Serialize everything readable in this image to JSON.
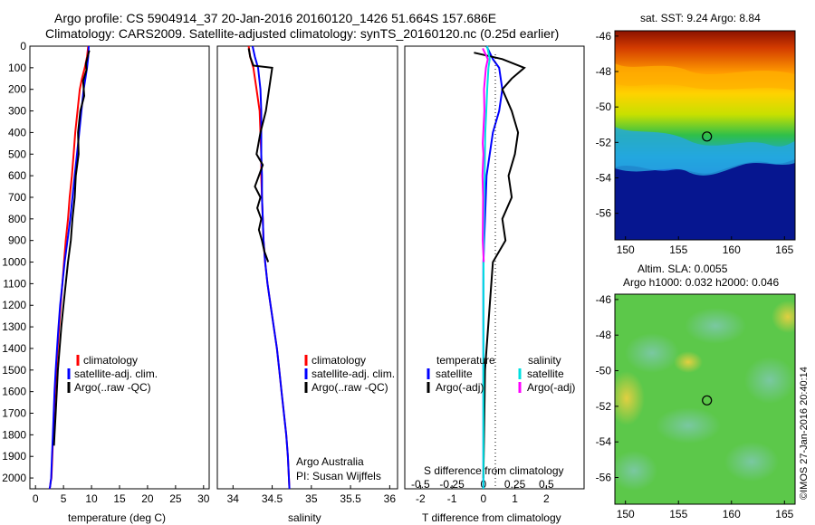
{
  "figure": {
    "title_line1": "Argo profile: CS 5904914_37 20-Jan-2016 20160120_1426 51.664S 157.686E",
    "title_line2": "Climatology: CARS2009. Satellite-adjusted climatology: synTS_20160120.nc (0.25d earlier)",
    "credit": "Argo Australia",
    "pi": "PI: Susan Wijffels",
    "side_stamp": "©IMOS 27-Jan-2016 20:40:14"
  },
  "colors": {
    "climatology": "#ff0000",
    "satellite": "#0000ff",
    "argo": "#000000",
    "salinity_satellite": "#00e0e0",
    "salinity_argo": "#ff00ff"
  },
  "chart_data": [
    {
      "type": "line",
      "id": "temperature",
      "xlabel": "temperature (deg C)",
      "ylabel": "",
      "xlim": [
        -1,
        31
      ],
      "ylim": [
        2050,
        0
      ],
      "xticks": [
        0,
        5,
        10,
        15,
        20,
        25,
        30
      ],
      "yticks": [
        0,
        100,
        200,
        300,
        400,
        500,
        600,
        700,
        800,
        900,
        1000,
        1100,
        1200,
        1300,
        1400,
        1500,
        1600,
        1700,
        1800,
        1900,
        2000
      ],
      "legend": [
        {
          "label": "climatology",
          "color": "#ff0000"
        },
        {
          "label": "satellite-adj. clim.",
          "color": "#0000ff"
        },
        {
          "label": "Argo(..raw -QC)",
          "color": "#000000"
        }
      ],
      "series": [
        {
          "name": "climatology",
          "color": "#ff0000",
          "x": [
            9.4,
            9.2,
            8.8,
            8.3,
            7.9,
            7.5,
            7.1,
            6.8,
            6.5,
            6.1,
            5.8,
            5.4,
            5.1,
            4.8,
            4.5,
            4.2,
            3.95,
            3.7,
            3.5,
            3.3,
            3.15,
            3.0,
            2.85,
            2.7,
            2.6,
            2.5
          ],
          "y": [
            0,
            50,
            100,
            150,
            200,
            300,
            400,
            500,
            600,
            700,
            800,
            900,
            1000,
            1100,
            1200,
            1300,
            1400,
            1500,
            1600,
            1700,
            1800,
            1900,
            2000,
            2020,
            2040,
            2050
          ]
        },
        {
          "name": "satellite-adj. clim.",
          "color": "#0000ff",
          "x": [
            9.5,
            9.4,
            9.2,
            8.9,
            8.6,
            8.2,
            7.8,
            7.4,
            7.0,
            6.6,
            6.2,
            5.7,
            5.2,
            4.8,
            4.4,
            4.1,
            3.85,
            3.6,
            3.4,
            3.25,
            3.1,
            2.95,
            2.8,
            2.7,
            2.6,
            2.5
          ],
          "y": [
            0,
            50,
            100,
            150,
            200,
            300,
            400,
            500,
            600,
            700,
            800,
            900,
            1000,
            1100,
            1200,
            1300,
            1400,
            1500,
            1600,
            1700,
            1800,
            1900,
            2000,
            2020,
            2040,
            2050
          ]
        },
        {
          "name": "Argo(..raw -QC)",
          "color": "#000000",
          "x": [
            9.6,
            9.3,
            9.0,
            9.1,
            8.5,
            8.7,
            8.0,
            7.6,
            7.7,
            7.2,
            7.0,
            6.6,
            6.3,
            5.8,
            5.4,
            5.0,
            4.6,
            4.3,
            4.0,
            3.8,
            3.6,
            3.4,
            3.3
          ],
          "y": [
            20,
            50,
            80,
            110,
            160,
            230,
            300,
            400,
            500,
            600,
            700,
            800,
            900,
            1000,
            1100,
            1200,
            1300,
            1400,
            1500,
            1600,
            1700,
            1800,
            1850
          ]
        }
      ]
    },
    {
      "type": "line",
      "id": "salinity",
      "xlabel": "salinity",
      "ylabel": "",
      "xlim": [
        33.8,
        36.1
      ],
      "ylim": [
        2050,
        0
      ],
      "xticks": [
        34,
        34.5,
        35,
        35.5,
        36
      ],
      "legend": [
        {
          "label": "climatology",
          "color": "#ff0000"
        },
        {
          "label": "satellite-adj. clim.",
          "color": "#0000ff"
        },
        {
          "label": "Argo(..raw -QC)",
          "color": "#000000"
        }
      ],
      "series": [
        {
          "name": "climatology",
          "color": "#ff0000",
          "x": [
            34.2,
            34.22,
            34.26,
            34.3,
            34.34,
            34.35,
            34.36,
            34.36,
            34.37,
            34.38,
            34.39,
            34.41,
            34.44,
            34.48,
            34.52,
            34.56,
            34.59,
            34.62,
            34.65,
            34.68,
            34.7,
            34.72
          ],
          "y": [
            0,
            50,
            100,
            200,
            300,
            400,
            500,
            600,
            700,
            800,
            900,
            1000,
            1100,
            1200,
            1300,
            1400,
            1500,
            1600,
            1700,
            1800,
            1900,
            2050
          ]
        },
        {
          "name": "satellite-adj. clim.",
          "color": "#0000ff",
          "x": [
            34.25,
            34.28,
            34.32,
            34.35,
            34.36,
            34.36,
            34.36,
            34.37,
            34.37,
            34.38,
            34.39,
            34.41,
            34.44,
            34.48,
            34.52,
            34.56,
            34.59,
            34.62,
            34.65,
            34.68,
            34.7,
            34.72
          ],
          "y": [
            0,
            50,
            100,
            200,
            300,
            400,
            500,
            600,
            700,
            800,
            900,
            1000,
            1100,
            1200,
            1300,
            1400,
            1500,
            1600,
            1700,
            1800,
            1900,
            2050
          ]
        },
        {
          "name": "Argo(..raw -QC)",
          "color": "#000000",
          "x": [
            34.2,
            34.22,
            34.26,
            34.5,
            34.46,
            34.42,
            34.35,
            34.3,
            34.38,
            34.33,
            34.28,
            34.35,
            34.31,
            34.36,
            34.33,
            34.37,
            34.4,
            34.45
          ],
          "y": [
            10,
            50,
            90,
            100,
            200,
            300,
            400,
            500,
            550,
            600,
            650,
            700,
            750,
            800,
            850,
            900,
            950,
            1000
          ]
        }
      ]
    },
    {
      "type": "line",
      "id": "difference",
      "xlabel": "T difference from climatology",
      "xlabel_top": "S difference from climatology",
      "xlim": [
        -2.5,
        3.2
      ],
      "ylim": [
        2050,
        0
      ],
      "xticks": [
        -2,
        -1,
        0,
        1,
        2
      ],
      "xticks_top": [
        "-0.5",
        "-0.25",
        "0",
        "0.25",
        "0.5"
      ],
      "legend": [
        {
          "label": "temperature",
          "color": ""
        },
        {
          "label": "satellite",
          "color": "#0000ff"
        },
        {
          "label": "Argo(-adj)",
          "color": "#000000"
        },
        {
          "label": "salinity",
          "color": ""
        },
        {
          "label": "satellite",
          "color": "#00e0e0"
        },
        {
          "label": "Argo(-adj)",
          "color": "#ff00ff"
        }
      ],
      "series": [
        {
          "name": "temperature satellite",
          "color": "#0000ff",
          "x": [
            0.1,
            0.3,
            0.5,
            0.6,
            0.5,
            0.3,
            0.2,
            0.1,
            0.05,
            0.0,
            0.0,
            0.0
          ],
          "y": [
            0,
            60,
            100,
            200,
            300,
            400,
            500,
            600,
            800,
            1000,
            1500,
            2050
          ]
        },
        {
          "name": "temperature Argo(-adj)",
          "color": "#000000",
          "x": [
            -0.3,
            0.6,
            1.3,
            0.9,
            0.6,
            0.9,
            1.1,
            1.0,
            0.8,
            0.9,
            0.6,
            0.7,
            0.3,
            0.2,
            0.05,
            0.0
          ],
          "y": [
            30,
            60,
            100,
            150,
            200,
            300,
            400,
            500,
            600,
            700,
            800,
            900,
            1000,
            1200,
            1500,
            2000
          ]
        },
        {
          "name": "salinity satellite",
          "color": "#00e0e0",
          "x": [
            0.12,
            0.2,
            0.16,
            0.12,
            0.09,
            0.06,
            0.04,
            0.02,
            0.0,
            0.0
          ],
          "y": [
            0,
            60,
            100,
            200,
            300,
            400,
            600,
            800,
            1100,
            2050
          ]
        },
        {
          "name": "salinity Argo(-adj)",
          "color": "#ff00ff",
          "x": [
            -0.02,
            0.14,
            0.08,
            0.02,
            0.03,
            -0.02,
            0.0,
            -0.03,
            -0.01,
            -0.02,
            0.01
          ],
          "y": [
            10,
            60,
            100,
            200,
            300,
            450,
            500,
            600,
            700,
            900,
            1000
          ]
        }
      ]
    },
    {
      "type": "heatmap",
      "id": "sst_map",
      "title": "sat. SST: 9.24 Argo: 8.84",
      "xlim": [
        149,
        166
      ],
      "ylim": [
        -57.5,
        -45.7
      ],
      "xticks": [
        150,
        155,
        160,
        165
      ],
      "yticks": [
        -46,
        -48,
        -50,
        -52,
        -54,
        -56
      ],
      "marker": {
        "lon": 157.686,
        "lat": -51.664
      }
    },
    {
      "type": "heatmap",
      "id": "sla_map",
      "title": "Altim. SLA: 0.0055",
      "subtitle": "Argo h1000: 0.032 h2000: 0.046",
      "xlim": [
        149,
        166
      ],
      "ylim": [
        -57.5,
        -45.7
      ],
      "xticks": [
        150,
        155,
        160,
        165
      ],
      "yticks": [
        -46,
        -48,
        -50,
        -52,
        -54,
        -56
      ],
      "marker": {
        "lon": 157.686,
        "lat": -51.664
      }
    }
  ]
}
